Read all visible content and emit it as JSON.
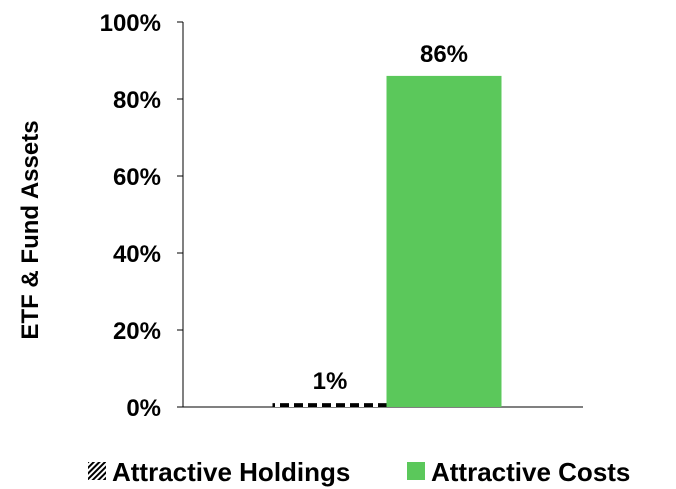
{
  "chart_data": {
    "type": "bar",
    "ylabel": "ETF & Fund Assets",
    "ylim": [
      0,
      100
    ],
    "yticks": [
      0,
      20,
      40,
      60,
      80,
      100
    ],
    "ytick_suffix": "%",
    "grid": false,
    "legend_position": "bottom",
    "series": [
      {
        "name": "Attractive Holdings",
        "value": 1,
        "label": "1%",
        "color": "#000000",
        "pattern": "dashed-hatch"
      },
      {
        "name": "Attractive Costs",
        "value": 86,
        "label": "86%",
        "color": "#5bc85b",
        "pattern": "solid"
      }
    ]
  }
}
